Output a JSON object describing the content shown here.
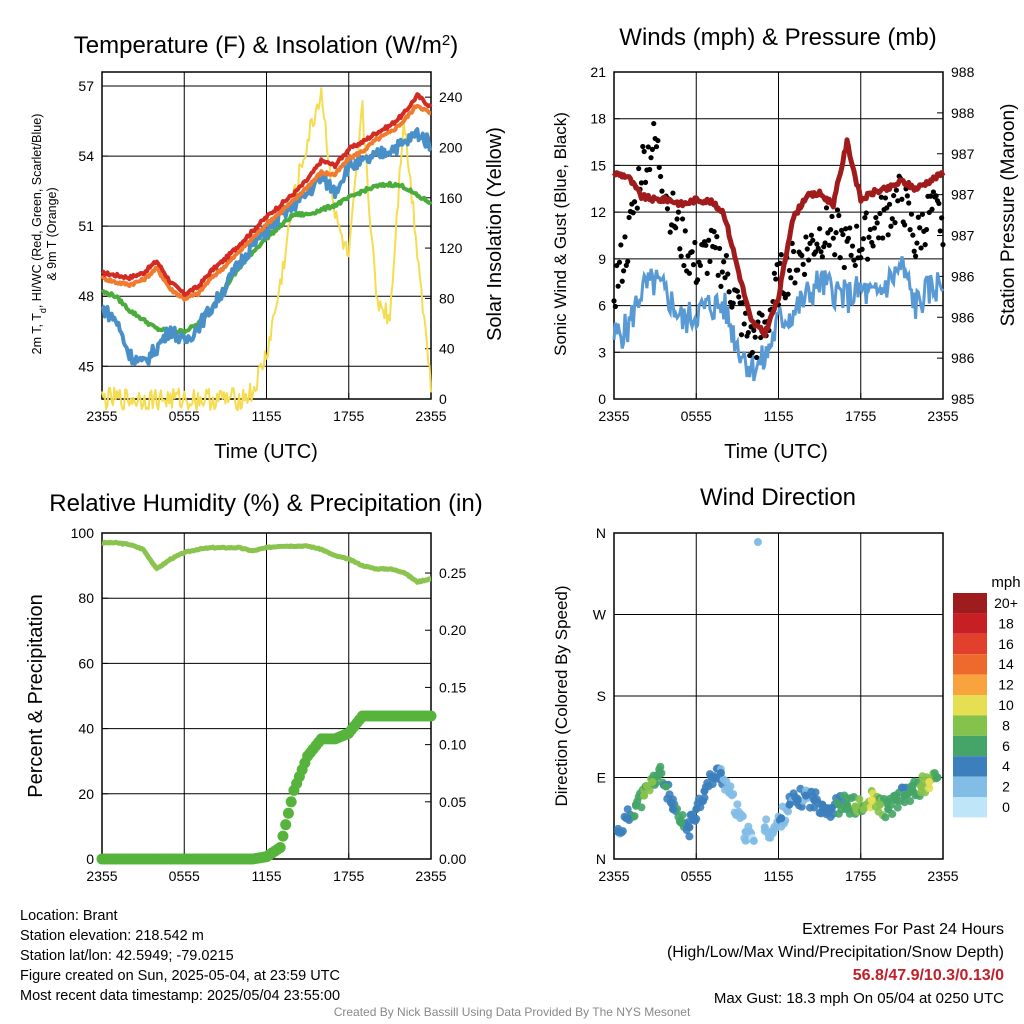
{
  "x_ticks": [
    "2355",
    "0555",
    "1155",
    "1755",
    "2355"
  ],
  "temp_panel": {
    "title": "Temperature (F) & Insolation (W/m²)",
    "ylabel_left_1": "2m T, Td, HI/WC (Red, Green, Scarlet/Blue)",
    "ylabel_left_2": "& 9m T (Orange)",
    "ylabel_right": "Solar Insolation (Yellow)",
    "xlabel": "Time (UTC)"
  },
  "wind_panel": {
    "title": "Winds (mph) & Pressure (mb)",
    "ylabel_left": "Sonic Wind & Gust (Blue, Black)",
    "ylabel_right": "Station Pressure (Maroon)",
    "xlabel": "Time (UTC)"
  },
  "rh_panel": {
    "title": "Relative Humidity (%) & Precipitation (in)",
    "ylabel_left": "Percent & Precipitation"
  },
  "dir_panel": {
    "title": "Wind Direction",
    "ylabel_left": "Direction (Colored By Speed)",
    "legend_title": "mph",
    "legend_labels": [
      "20+",
      "18",
      "16",
      "14",
      "12",
      "10",
      "8",
      "6",
      "4",
      "2",
      "0"
    ],
    "legend_colors": [
      "#9e1b1e",
      "#c81f25",
      "#e1402c",
      "#ee6a2c",
      "#f8a33e",
      "#e6df52",
      "#85c24b",
      "#45a467",
      "#3b7fbd",
      "#82bde6",
      "#bfe6f8"
    ]
  },
  "info": {
    "location": "Location: Brant",
    "elevation": "Station elevation: 218.542 m",
    "latlon": "Station lat/lon: 42.5949; -79.0215",
    "created": "Figure created on Sun, 2025-05-04, at 23:59 UTC",
    "recent": "Most recent data timestamp: 2025/05/04 23:55:00"
  },
  "extremes": {
    "title": "Extremes For Past 24 Hours",
    "subtitle": "(High/Low/Max Wind/Precipitation/Snow Depth)",
    "values": "56.8/47.9/10.3/0.13/0",
    "gust": "Max Gust: 18.3 mph On 05/04 at 0250 UTC"
  },
  "footer": "Created By Nick Bassill Using Data Provided By The NYS Mesonet",
  "chart_data": [
    {
      "type": "line",
      "title": "Temperature (F) & Insolation (W/m2)",
      "xlabel": "Time (UTC)",
      "ylabel": "2m T, Td, HI/WC (Red, Green, Scarlet/Blue) & 9m T (Orange)",
      "y2label": "Solar Insolation (Yellow)",
      "xlim": [
        0,
        24
      ],
      "ylim": [
        43.6,
        57.6
      ],
      "y_ticks": [
        45,
        48,
        51,
        54,
        57
      ],
      "y2lim": [
        0,
        260
      ],
      "y2_ticks": [
        0,
        40,
        80,
        120,
        160,
        200,
        240
      ],
      "x": [
        0,
        1,
        2,
        3,
        4,
        5,
        6,
        7,
        8,
        9,
        10,
        11,
        12,
        13,
        14,
        15,
        16,
        17,
        18,
        19,
        20,
        21,
        22,
        23,
        24
      ],
      "series": [
        {
          "name": "2m T",
          "color": "#d42a24",
          "axis": "left",
          "values": [
            49.0,
            48.9,
            48.8,
            49.0,
            49.5,
            48.6,
            48.1,
            48.4,
            49.1,
            49.6,
            50.2,
            50.8,
            51.4,
            51.9,
            52.4,
            53.0,
            53.8,
            53.6,
            54.3,
            54.6,
            55.0,
            55.3,
            55.8,
            56.6,
            56.1
          ]
        },
        {
          "name": "9m T",
          "color": "#f07a2e",
          "axis": "left",
          "values": [
            48.8,
            48.6,
            48.5,
            48.7,
            49.2,
            48.3,
            47.9,
            48.1,
            48.8,
            49.3,
            49.9,
            50.5,
            51.1,
            51.6,
            52.1,
            52.7,
            53.3,
            53.2,
            53.9,
            54.2,
            54.7,
            55.0,
            55.5,
            56.2,
            55.8
          ]
        },
        {
          "name": "Td",
          "color": "#4aac3a",
          "axis": "left",
          "values": [
            48.2,
            48.0,
            47.4,
            47.0,
            46.6,
            46.5,
            46.5,
            46.8,
            47.5,
            48.4,
            49.2,
            49.9,
            50.5,
            51.0,
            51.5,
            51.5,
            51.7,
            51.9,
            52.2,
            52.5,
            52.7,
            52.8,
            52.7,
            52.3,
            52.0
          ]
        },
        {
          "name": "HI/WC",
          "color": "#4a90c8",
          "axis": "left",
          "values": [
            47.5,
            47.0,
            45.5,
            45.1,
            45.8,
            46.6,
            46.0,
            46.7,
            47.5,
            48.4,
            49.4,
            50.2,
            50.8,
            51.4,
            51.9,
            52.4,
            53.1,
            52.5,
            53.6,
            53.7,
            54.0,
            54.3,
            54.5,
            55.0,
            54.5
          ]
        },
        {
          "name": "Solar Insolation",
          "color": "#f5dc50",
          "axis": "right",
          "values": [
            0,
            0,
            0,
            0,
            0,
            0,
            0,
            0,
            0,
            0,
            0,
            5,
            35,
            90,
            160,
            205,
            245,
            145,
            110,
            230,
            80,
            65,
            225,
            120,
            10
          ]
        }
      ]
    },
    {
      "type": "line",
      "title": "Winds (mph) & Pressure (mb)",
      "xlabel": "Time (UTC)",
      "ylabel": "Sonic Wind & Gust (Blue, Black)",
      "y2label": "Station Pressure (Maroon)",
      "xlim": [
        0,
        24
      ],
      "ylim": [
        0,
        21
      ],
      "y_ticks": [
        0,
        3,
        6,
        9,
        12,
        15,
        18,
        21
      ],
      "y2_tick_labels": [
        "985",
        "986",
        "986",
        "986",
        "987",
        "987",
        "987",
        "988",
        "988"
      ],
      "x": [
        0,
        1,
        2,
        3,
        4,
        5,
        6,
        7,
        8,
        9,
        10,
        11,
        12,
        13,
        14,
        15,
        16,
        17,
        18,
        19,
        20,
        21,
        22,
        23,
        24
      ],
      "series": [
        {
          "name": "Sonic Wind",
          "color": "#5a9ad4",
          "axis": "left",
          "values": [
            4.0,
            4.5,
            7.0,
            7.5,
            6.5,
            5.0,
            5.5,
            6.0,
            6.0,
            3.5,
            2.0,
            2.5,
            5.0,
            5.5,
            6.5,
            7.5,
            7.0,
            6.5,
            7.0,
            6.5,
            7.5,
            8.5,
            6.0,
            7.0,
            7.5
          ]
        },
        {
          "name": "Gust",
          "color": "#000000",
          "axis": "left",
          "values": [
            7.0,
            10.0,
            15.0,
            16.5,
            12.5,
            10.0,
            8.5,
            9.5,
            8.5,
            6.0,
            3.5,
            4.5,
            7.5,
            8.5,
            9.5,
            10.5,
            11.0,
            9.5,
            10.0,
            11.0,
            12.0,
            13.0,
            10.0,
            12.0,
            11.5
          ]
        },
        {
          "name": "Station Pressure",
          "color": "#a01c1c",
          "axis": "right",
          "values": [
            14.5,
            14.3,
            13.0,
            12.8,
            12.8,
            12.5,
            12.8,
            12.7,
            12.0,
            8.5,
            5.0,
            4.2,
            6.5,
            11.5,
            13.0,
            13.2,
            12.5,
            16.5,
            12.8,
            13.3,
            13.5,
            14.0,
            13.5,
            14.0,
            14.5
          ]
        }
      ]
    },
    {
      "type": "line",
      "title": "Relative Humidity (%) & Precipitation (in)",
      "ylabel": "Percent & Precipitation",
      "xlim": [
        0,
        24
      ],
      "ylim": [
        0,
        100
      ],
      "y_ticks": [
        0,
        20,
        40,
        60,
        80,
        100
      ],
      "y2_ticks": [
        0.0,
        0.05,
        0.1,
        0.15,
        0.2,
        0.25
      ],
      "y2lim": [
        0,
        0.285
      ],
      "x": [
        0,
        1,
        2,
        3,
        4,
        5,
        6,
        7,
        8,
        9,
        10,
        11,
        12,
        13,
        14,
        15,
        16,
        17,
        18,
        19,
        20,
        21,
        22,
        23,
        24
      ],
      "series": [
        {
          "name": "Relative Humidity",
          "color": "#8ac44e",
          "axis": "left",
          "values": [
            97,
            97,
            96.5,
            95,
            89,
            92,
            94,
            95,
            95.5,
            95.5,
            95.5,
            94.5,
            95.5,
            96,
            96,
            96,
            95,
            93,
            92,
            90,
            89,
            89,
            88,
            85,
            86
          ]
        },
        {
          "name": "Precipitation",
          "color": "#56b33c",
          "axis": "right",
          "values": [
            0,
            0,
            0,
            0,
            0,
            0,
            0,
            0,
            0,
            0,
            0,
            0,
            0.002,
            0.01,
            0.06,
            0.09,
            0.105,
            0.105,
            0.11,
            0.125,
            0.125,
            0.125,
            0.125,
            0.125,
            0.125
          ]
        }
      ]
    },
    {
      "type": "scatter",
      "title": "Wind Direction",
      "ylabel": "Direction (Colored By Speed)",
      "xlim": [
        0,
        24
      ],
      "y_tick_labels": [
        "N",
        "E",
        "S",
        "W",
        "N"
      ],
      "ylim": [
        0,
        360
      ],
      "legend": "right",
      "points": [
        {
          "x": 0.3,
          "y": 30,
          "speed": 3
        },
        {
          "x": 1.0,
          "y": 45,
          "speed": 4
        },
        {
          "x": 1.6,
          "y": 60,
          "speed": 6
        },
        {
          "x": 2.2,
          "y": 70,
          "speed": 7
        },
        {
          "x": 2.8,
          "y": 85,
          "speed": 7
        },
        {
          "x": 3.3,
          "y": 95,
          "speed": 6
        },
        {
          "x": 3.8,
          "y": 80,
          "speed": 5
        },
        {
          "x": 4.3,
          "y": 55,
          "speed": 4
        },
        {
          "x": 4.9,
          "y": 40,
          "speed": 6
        },
        {
          "x": 5.5,
          "y": 35,
          "speed": 4
        },
        {
          "x": 6.0,
          "y": 55,
          "speed": 4
        },
        {
          "x": 6.6,
          "y": 75,
          "speed": 4
        },
        {
          "x": 7.2,
          "y": 90,
          "speed": 4
        },
        {
          "x": 7.8,
          "y": 95,
          "speed": 3
        },
        {
          "x": 8.4,
          "y": 75,
          "speed": 2
        },
        {
          "x": 9.0,
          "y": 50,
          "speed": 2
        },
        {
          "x": 9.6,
          "y": 30,
          "speed": 2
        },
        {
          "x": 10.2,
          "y": 20,
          "speed": 1
        },
        {
          "x": 10.5,
          "y": 350,
          "speed": 2
        },
        {
          "x": 11.0,
          "y": 35,
          "speed": 2
        },
        {
          "x": 11.6,
          "y": 30,
          "speed": 2
        },
        {
          "x": 12.2,
          "y": 45,
          "speed": 3
        },
        {
          "x": 12.8,
          "y": 60,
          "speed": 3
        },
        {
          "x": 13.4,
          "y": 65,
          "speed": 4
        },
        {
          "x": 14.0,
          "y": 70,
          "speed": 3
        },
        {
          "x": 14.6,
          "y": 65,
          "speed": 4
        },
        {
          "x": 15.2,
          "y": 60,
          "speed": 4
        },
        {
          "x": 15.8,
          "y": 55,
          "speed": 4
        },
        {
          "x": 16.4,
          "y": 60,
          "speed": 5
        },
        {
          "x": 17.0,
          "y": 60,
          "speed": 6
        },
        {
          "x": 17.6,
          "y": 58,
          "speed": 7
        },
        {
          "x": 18.2,
          "y": 55,
          "speed": 7
        },
        {
          "x": 18.8,
          "y": 65,
          "speed": 9
        },
        {
          "x": 19.4,
          "y": 60,
          "speed": 7
        },
        {
          "x": 20.0,
          "y": 55,
          "speed": 6
        },
        {
          "x": 20.6,
          "y": 65,
          "speed": 6
        },
        {
          "x": 21.2,
          "y": 70,
          "speed": 5
        },
        {
          "x": 21.8,
          "y": 75,
          "speed": 6
        },
        {
          "x": 22.4,
          "y": 80,
          "speed": 7
        },
        {
          "x": 23.0,
          "y": 85,
          "speed": 9
        },
        {
          "x": 23.6,
          "y": 90,
          "speed": 6
        }
      ]
    }
  ]
}
